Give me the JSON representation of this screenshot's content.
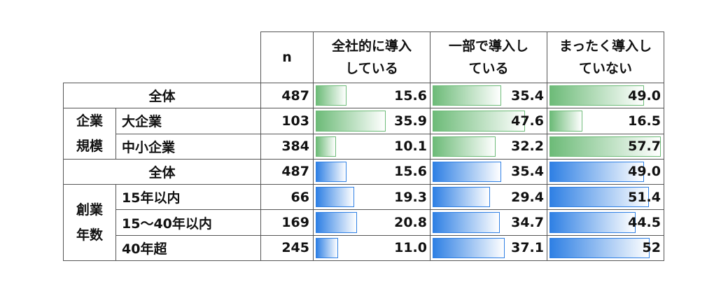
{
  "header": {
    "columns": [
      "n",
      [
        "全社的に導入",
        "している"
      ],
      [
        "一部で導入し",
        "ている"
      ],
      [
        "まったく導入し",
        "ていない"
      ]
    ]
  },
  "sections": [
    {
      "color": "#6dbb78",
      "rows": [
        {
          "label": "全体",
          "n": "487",
          "values": [
            "15.6",
            "35.4",
            "49.0"
          ]
        }
      ]
    },
    {
      "color": "#6dbb78",
      "group": [
        "企業",
        "規模"
      ],
      "rows": [
        {
          "label": "大企業",
          "n": "103",
          "values": [
            "35.9",
            "47.6",
            "16.5"
          ]
        },
        {
          "label": "中小企業",
          "n": "384",
          "values": [
            "10.1",
            "32.2",
            "57.7"
          ]
        }
      ]
    },
    {
      "color": "#2f80e4",
      "rows": [
        {
          "label": "全体",
          "n": "487",
          "values": [
            "15.6",
            "35.4",
            "49.0"
          ]
        }
      ]
    },
    {
      "color": "#2f80e4",
      "group": [
        "創業",
        "年数"
      ],
      "rows": [
        {
          "label": "15年以内",
          "n": "66",
          "values": [
            "19.3",
            "29.4",
            "51.4"
          ]
        },
        {
          "label": "15～40年以内",
          "n": "169",
          "values": [
            "20.8",
            "34.7",
            "44.5"
          ]
        },
        {
          "label": "40年超",
          "n": "245",
          "values": [
            "11.0",
            "37.1",
            "52"
          ]
        }
      ]
    }
  ]
}
